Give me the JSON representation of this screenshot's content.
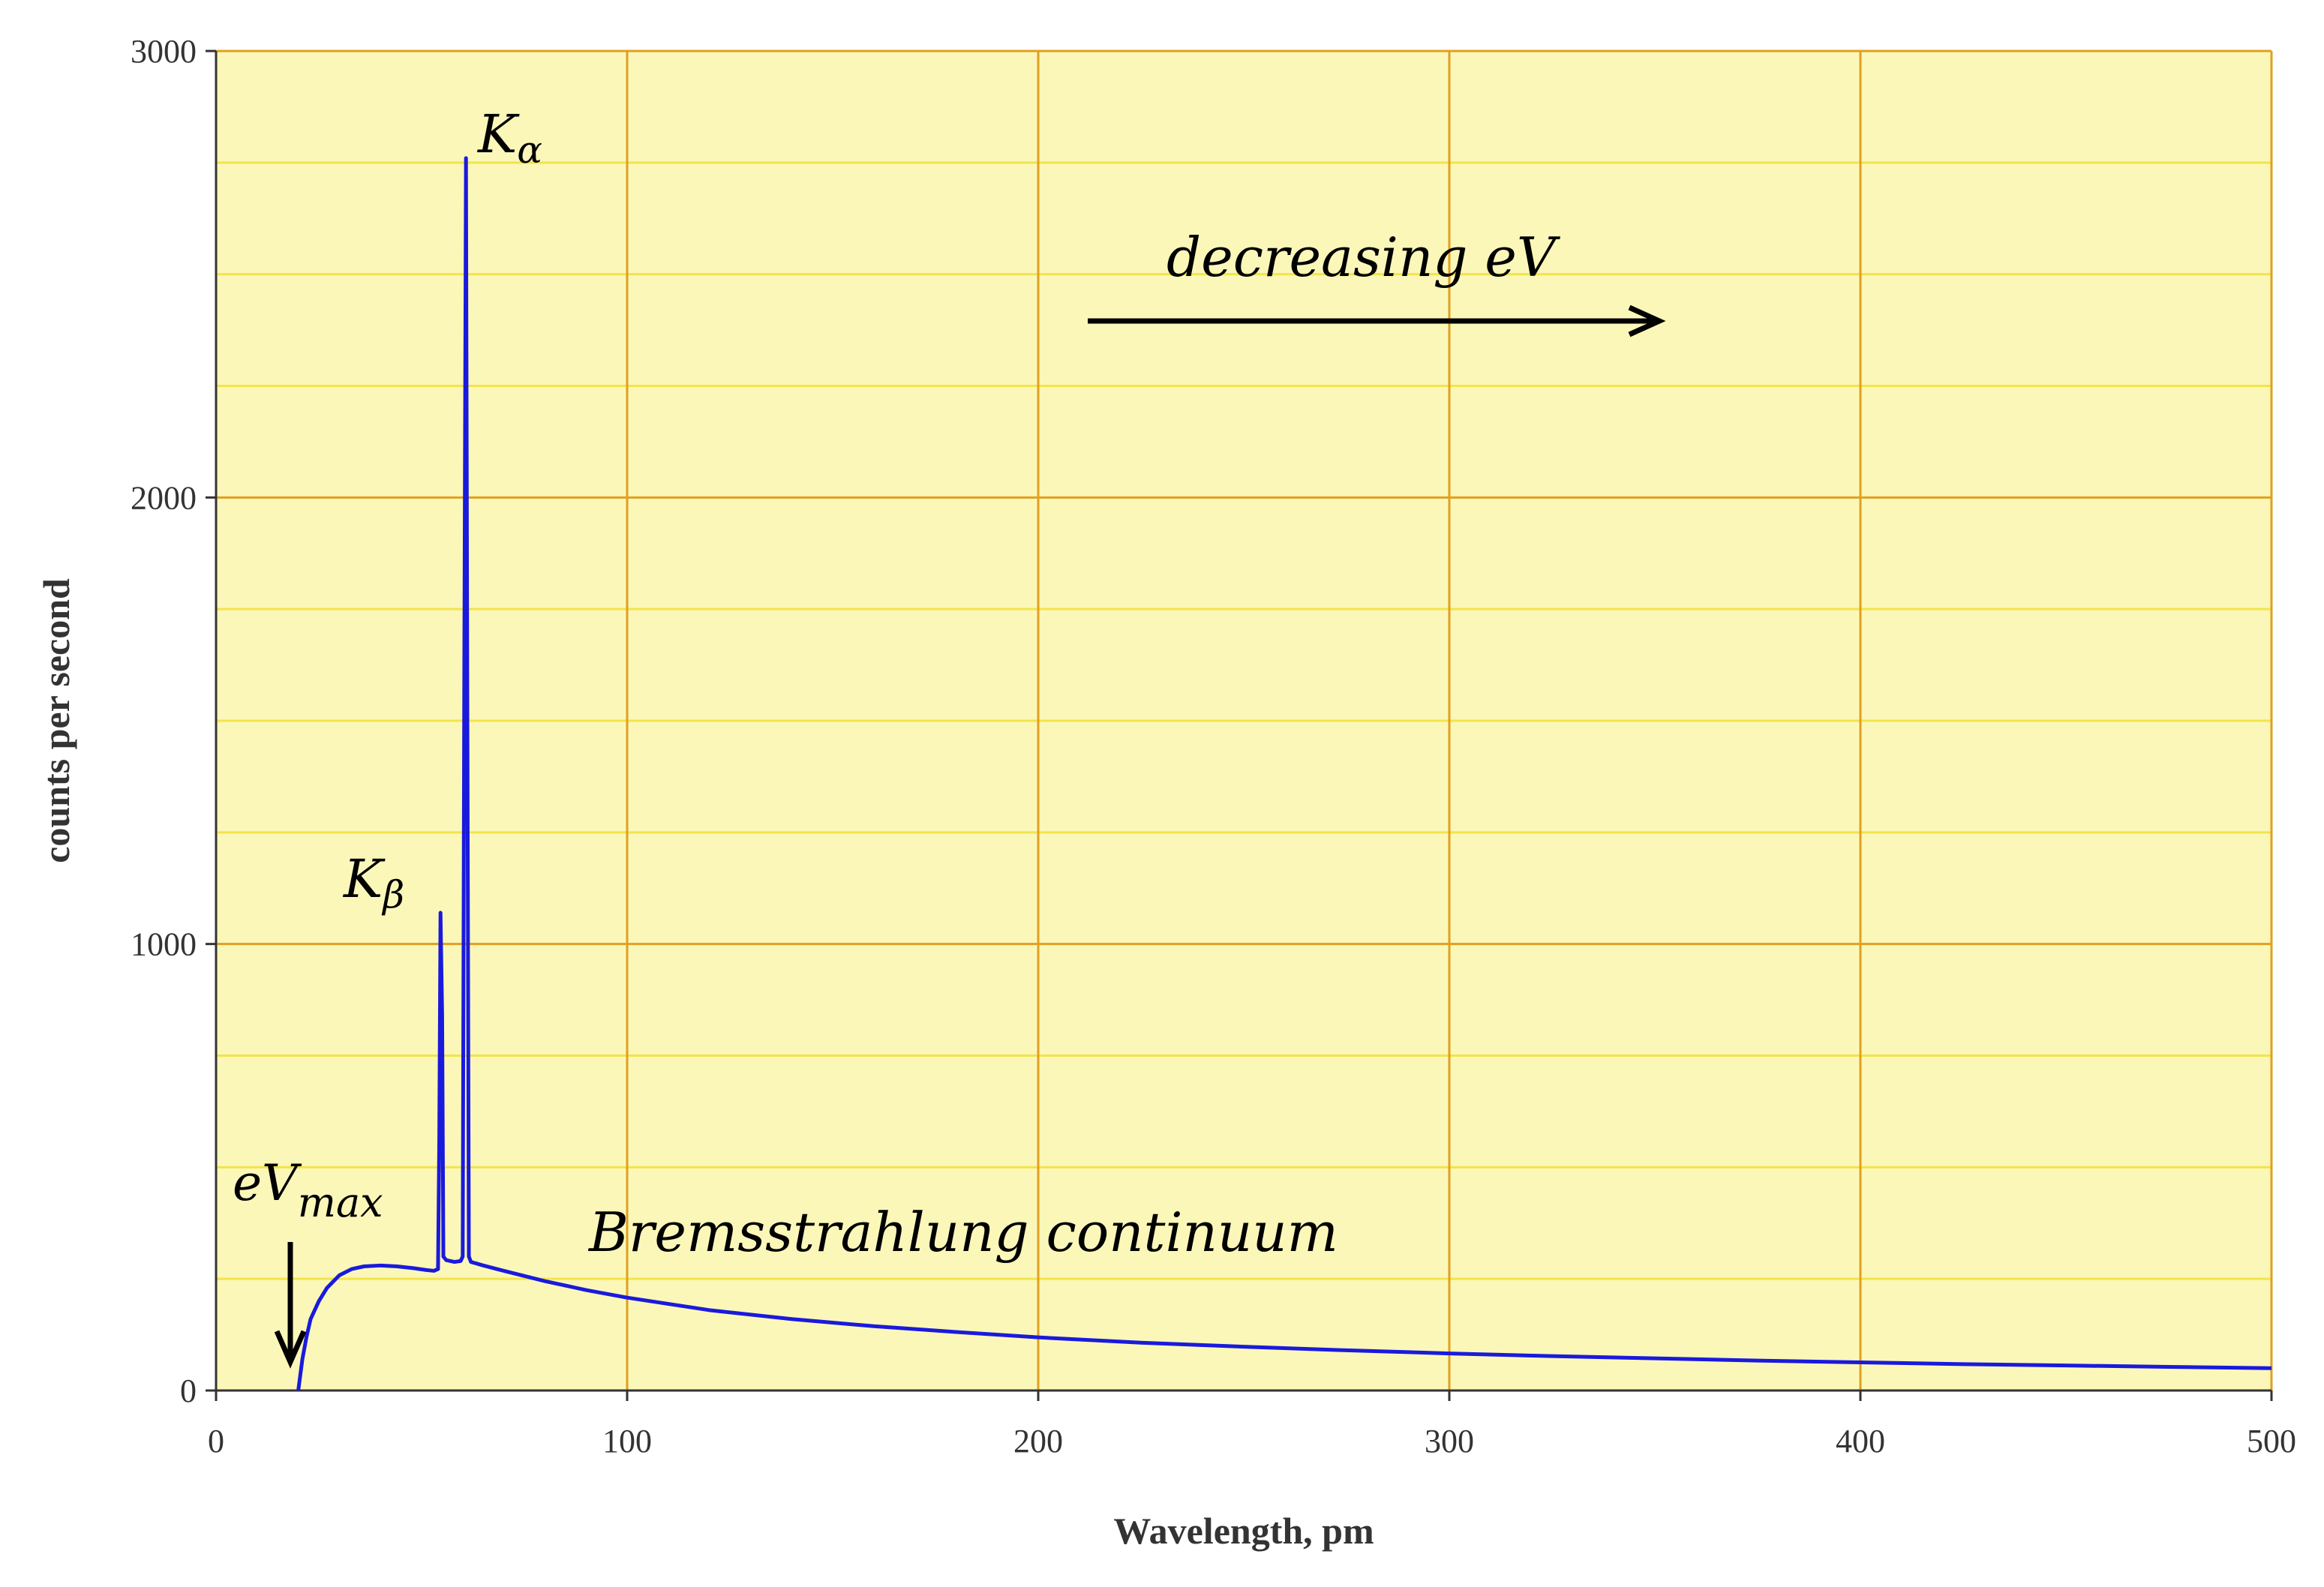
{
  "chart_data": {
    "type": "line",
    "title": "",
    "xlabel": "Wavelength, pm",
    "ylabel": "counts per second",
    "xlim": [
      0,
      500
    ],
    "ylim": [
      0,
      3000
    ],
    "x_ticks": [
      0,
      100,
      200,
      300,
      400,
      500
    ],
    "y_ticks": [
      0,
      1000,
      2000,
      3000
    ],
    "x_tick_labels": [
      "0",
      "100",
      "200",
      "300",
      "400",
      "500"
    ],
    "y_tick_labels": [
      "0",
      "1000",
      "2000",
      "3000"
    ],
    "grid": true,
    "legend": "none",
    "colors": {
      "plot_background": "#fbf7b9",
      "major_grid": "#e0a020",
      "minor_grid": "#f2e44a",
      "series": "#1a1adc",
      "axis": "#333333"
    },
    "series": [
      {
        "points": [
          [
            20,
            0
          ],
          [
            21,
            70
          ],
          [
            22,
            120
          ],
          [
            23,
            160
          ],
          [
            25,
            200
          ],
          [
            27,
            230
          ],
          [
            30,
            258
          ],
          [
            33,
            272
          ],
          [
            36,
            278
          ],
          [
            40,
            280
          ],
          [
            44,
            278
          ],
          [
            48,
            274
          ],
          [
            51,
            270
          ],
          [
            53,
            268
          ],
          [
            54,
            272
          ],
          [
            54.3,
            560
          ],
          [
            54.6,
            1070
          ],
          [
            55,
            840
          ],
          [
            55.3,
            300
          ],
          [
            56,
            292
          ],
          [
            58,
            288
          ],
          [
            59.5,
            290
          ],
          [
            60,
            300
          ],
          [
            60.4,
            1650
          ],
          [
            60.8,
            2760
          ],
          [
            61.1,
            1620
          ],
          [
            61.5,
            300
          ],
          [
            62,
            288
          ],
          [
            65,
            280
          ],
          [
            70,
            268
          ],
          [
            80,
            245
          ],
          [
            90,
            225
          ],
          [
            100,
            208
          ],
          [
            120,
            180
          ],
          [
            140,
            160
          ],
          [
            160,
            144
          ],
          [
            180,
            131
          ],
          [
            200,
            119
          ],
          [
            225,
            107
          ],
          [
            250,
            98
          ],
          [
            275,
            90
          ],
          [
            300,
            83
          ],
          [
            325,
            77
          ],
          [
            350,
            72
          ],
          [
            375,
            67
          ],
          [
            400,
            63
          ],
          [
            425,
            59
          ],
          [
            450,
            56
          ],
          [
            475,
            53
          ],
          [
            500,
            50
          ]
        ]
      }
    ],
    "annotations": {
      "k_alpha_main": "K",
      "k_alpha_sub": "α",
      "k_beta_main": "K",
      "k_beta_sub": "β",
      "ev_max_main": "eV",
      "ev_max_sub": "max",
      "bremsstrahlung": "Bremsstrahlung continuum",
      "decreasing_ev": "decreasing eV"
    }
  }
}
